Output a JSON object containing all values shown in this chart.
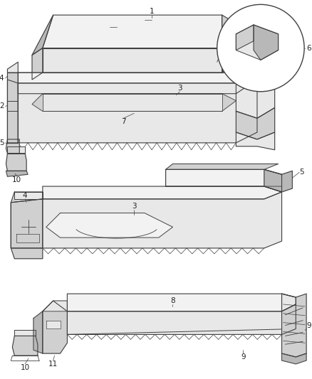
{
  "background_color": "#ffffff",
  "line_color": "#404040",
  "label_color": "#222222",
  "label_fontsize": 7.5,
  "fig_width": 4.38,
  "fig_height": 5.33,
  "face_light": "#e8e8e8",
  "face_mid": "#d0d0d0",
  "face_dark": "#b8b8b8",
  "face_white": "#f2f2f2"
}
